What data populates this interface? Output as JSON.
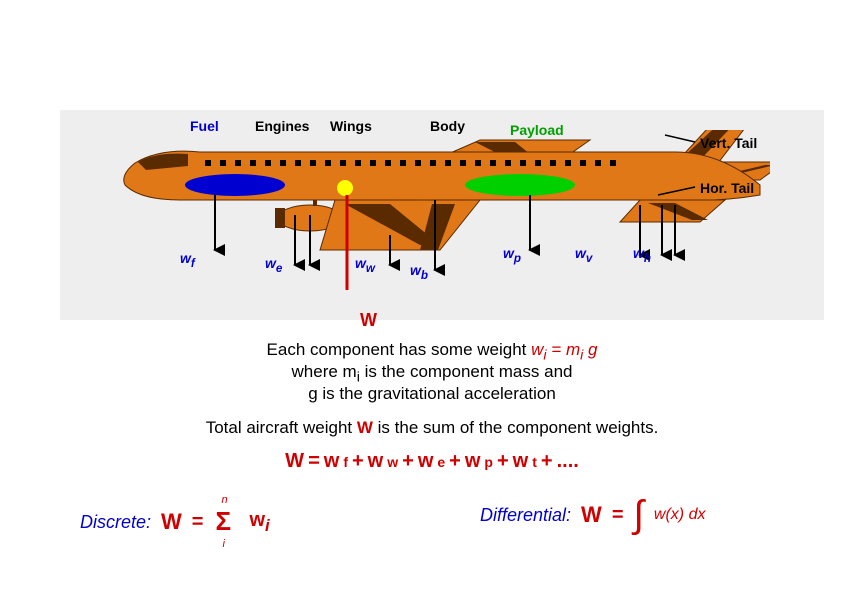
{
  "colors": {
    "bg": "#ffffff",
    "panel": "#eeeeee",
    "airplane_body": "#e07818",
    "airplane_dark": "#5a2a00",
    "fuel_fill": "#0000d0",
    "payload_fill": "#00d000",
    "cg_dot": "#ffff00",
    "text_black": "#000000",
    "text_blue": "#0000d0",
    "text_red": "#d00000",
    "text_green": "#00a000",
    "arrow_black": "#000000",
    "arrow_red": "#d00000"
  },
  "labels": {
    "top": {
      "fuel": "Fuel",
      "engines": "Engines",
      "wings": "Wings",
      "body": "Body",
      "payload": "Payload",
      "vert_tail": "Vert. Tail",
      "hor_tail": "Hor. Tail"
    },
    "weights": {
      "wf": "w",
      "wf_sub": "f",
      "we": "w",
      "we_sub": "e",
      "ww": "w",
      "ww_sub": "w",
      "wb": "w",
      "wb_sub": "b",
      "wp": "w",
      "wp_sub": "p",
      "wv": "w",
      "wv_sub": "v",
      "wh": "w",
      "wh_sub": "h",
      "W": "W"
    }
  },
  "explain": {
    "line1_a": "Each component has some weight  ",
    "line1_eq": "w",
    "line1_eq_sub": "i",
    "line1_eq_mid": " = m",
    "line1_eq_sub2": "i",
    "line1_eq_end": " g",
    "line2_a": "where m",
    "line2_sub": "i",
    "line2_b": " is the component mass and",
    "line3": "g is the gravitational acceleration",
    "line4_a": "Total aircraft weight ",
    "line4_W": "W",
    "line4_b": " is the sum of the component weights."
  },
  "equation": {
    "tokens": [
      "W",
      " = ",
      "w",
      "f",
      " + ",
      "w",
      "w",
      " + ",
      "w",
      "e",
      " + ",
      "w",
      "p",
      " + ",
      "w",
      "t",
      " + ",
      " ...."
    ]
  },
  "bottom": {
    "discrete_label": "Discrete:",
    "differential_label": "Differential:",
    "discrete_W": "W",
    "discrete_eq": " = ",
    "sigma_top": "n",
    "sigma_bot": "i",
    "sigma_term": "w",
    "sigma_term_sub": "i",
    "diff_W": "W",
    "diff_eq": " = ",
    "diff_integrand": "w(x) dx"
  },
  "fonts": {
    "label_size": 14,
    "explain_size": 17,
    "eq_size": 20
  }
}
